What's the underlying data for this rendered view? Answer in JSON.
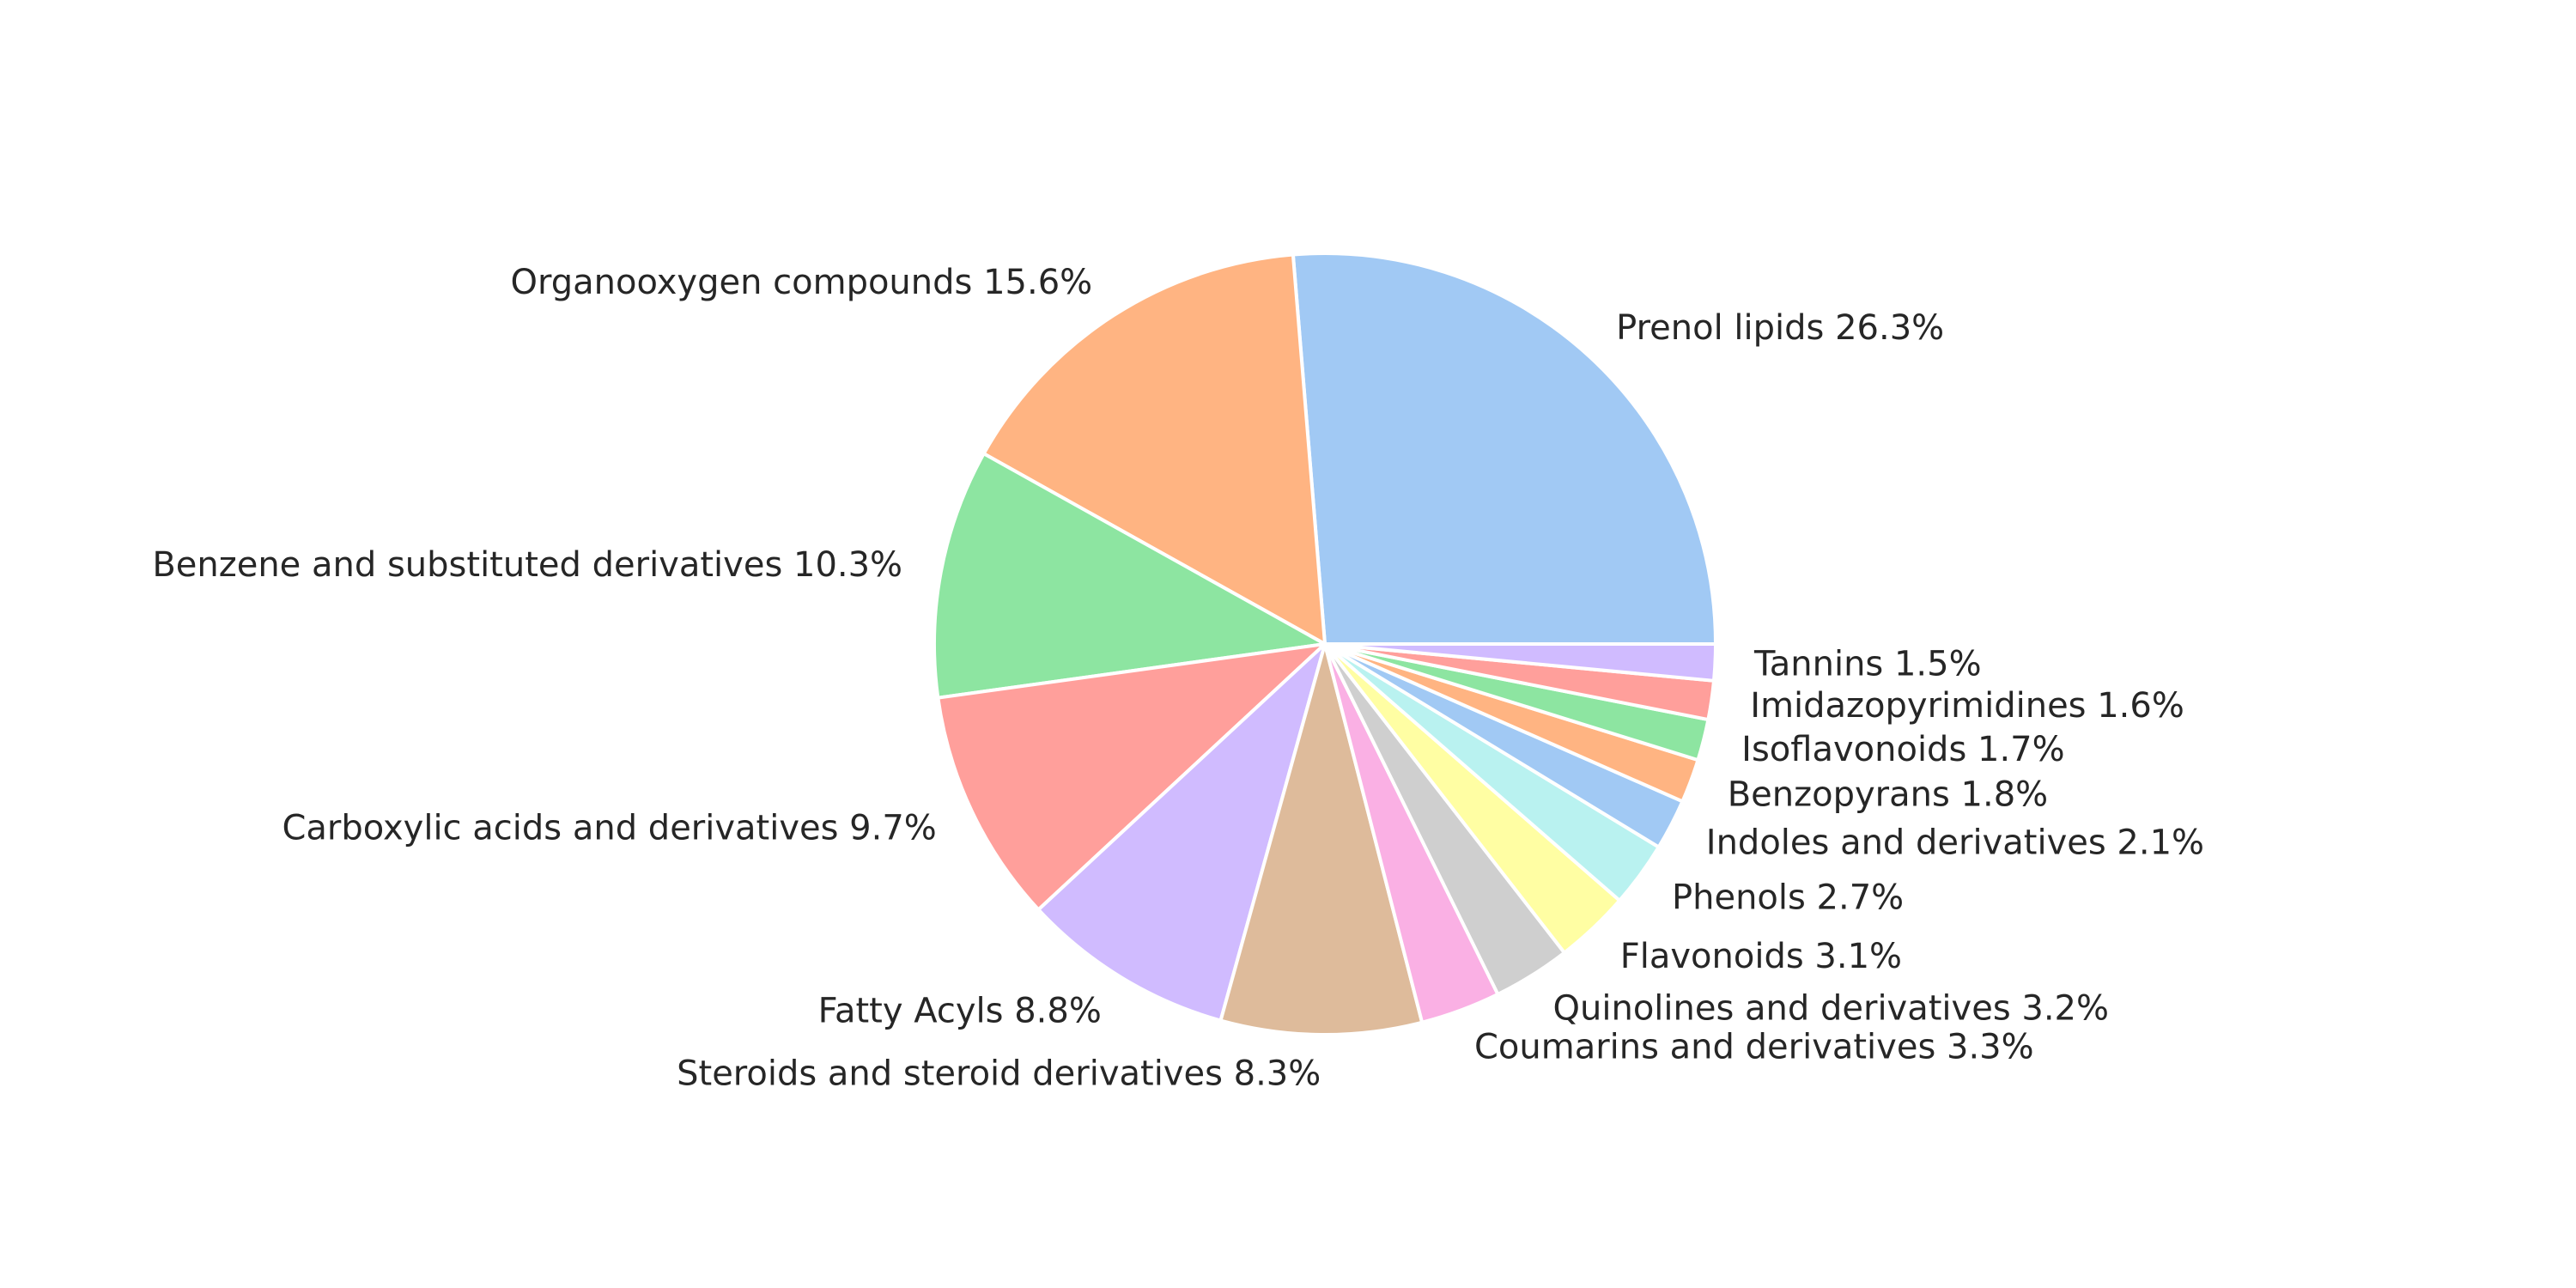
{
  "chart_data": {
    "type": "pie",
    "title": "",
    "start_angle_deg": 0,
    "direction": "counterclockwise",
    "legend": "none",
    "slices": [
      {
        "label": "Prenol lipids",
        "percent_label": "26.3%",
        "value": 26.3,
        "color": "#a1c9f4"
      },
      {
        "label": "Organooxygen compounds",
        "percent_label": "15.6%",
        "value": 15.6,
        "color": "#ffb482"
      },
      {
        "label": "Benzene and substituted derivatives",
        "percent_label": "10.3%",
        "value": 10.3,
        "color": "#8de5a1"
      },
      {
        "label": "Carboxylic acids and derivatives",
        "percent_label": "9.7%",
        "value": 9.7,
        "color": "#ff9f9b"
      },
      {
        "label": "Fatty Acyls",
        "percent_label": "8.8%",
        "value": 8.8,
        "color": "#d0bbff"
      },
      {
        "label": "Steroids and steroid derivatives",
        "percent_label": "8.3%",
        "value": 8.3,
        "color": "#debb9b"
      },
      {
        "label": "Coumarins and derivatives",
        "percent_label": "3.3%",
        "value": 3.3,
        "color": "#fab0e4"
      },
      {
        "label": "Quinolines and derivatives",
        "percent_label": "3.2%",
        "value": 3.2,
        "color": "#cfcfcf"
      },
      {
        "label": "Flavonoids",
        "percent_label": "3.1%",
        "value": 3.1,
        "color": "#fffea3"
      },
      {
        "label": "Phenols",
        "percent_label": "2.7%",
        "value": 2.7,
        "color": "#b9f2f0"
      },
      {
        "label": "Indoles and derivatives",
        "percent_label": "2.1%",
        "value": 2.1,
        "color": "#a1c9f4"
      },
      {
        "label": "Benzopyrans",
        "percent_label": "1.8%",
        "value": 1.8,
        "color": "#ffb482"
      },
      {
        "label": "Isoflavonoids",
        "percent_label": "1.7%",
        "value": 1.7,
        "color": "#8de5a1"
      },
      {
        "label": "Imidazopyrimidines",
        "percent_label": "1.6%",
        "value": 1.6,
        "color": "#ff9f9b"
      },
      {
        "label": "Tannins",
        "percent_label": "1.5%",
        "value": 1.5,
        "color": "#d0bbff"
      }
    ]
  }
}
